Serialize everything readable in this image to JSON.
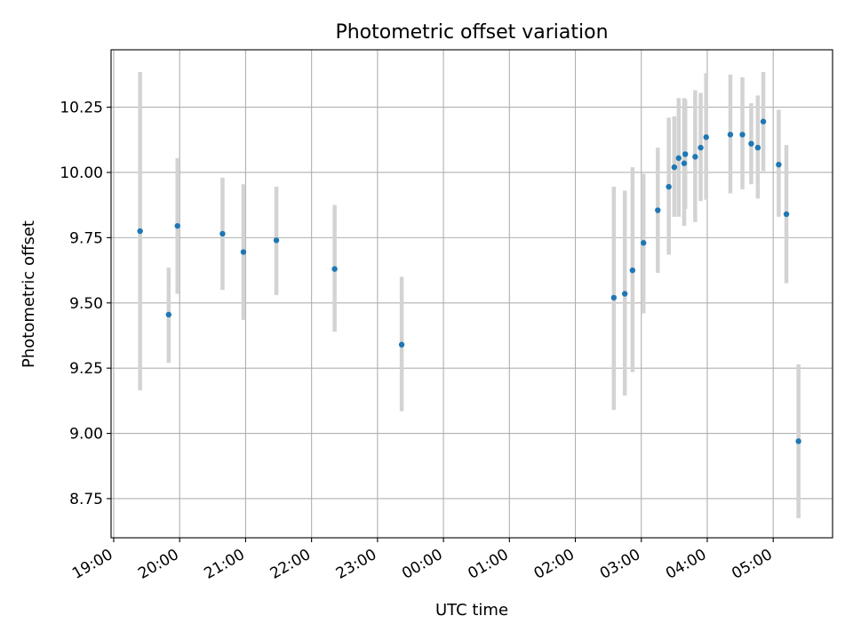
{
  "chart_data": {
    "type": "scatter",
    "title": "Photometric offset variation",
    "xlabel": "UTC time",
    "ylabel": "Photometric offset",
    "grid": true,
    "xlim_hours": [
      18.96,
      29.9
    ],
    "ylim": [
      8.6,
      10.47
    ],
    "x_ticks": [
      {
        "value": 19,
        "label": "19:00"
      },
      {
        "value": 20,
        "label": "20:00"
      },
      {
        "value": 21,
        "label": "21:00"
      },
      {
        "value": 22,
        "label": "22:00"
      },
      {
        "value": 23,
        "label": "23:00"
      },
      {
        "value": 24,
        "label": "00:00"
      },
      {
        "value": 25,
        "label": "01:00"
      },
      {
        "value": 26,
        "label": "02:00"
      },
      {
        "value": 27,
        "label": "03:00"
      },
      {
        "value": 28,
        "label": "04:00"
      },
      {
        "value": 29,
        "label": "05:00"
      }
    ],
    "y_ticks": [
      {
        "value": 8.75,
        "label": "8.75"
      },
      {
        "value": 9.0,
        "label": "9.00"
      },
      {
        "value": 9.25,
        "label": "9.25"
      },
      {
        "value": 9.5,
        "label": "9.50"
      },
      {
        "value": 9.75,
        "label": "9.75"
      },
      {
        "value": 10.0,
        "label": "10.00"
      },
      {
        "value": 10.25,
        "label": "10.25"
      }
    ],
    "colors": {
      "point": "#1f77b4",
      "errorbar": "#d3d3d3",
      "grid": "#b0b0b0"
    },
    "points": [
      {
        "time": "19:24",
        "y": 9.775,
        "ylo": 9.165,
        "yhi": 10.385
      },
      {
        "time": "19:50",
        "y": 9.455,
        "ylo": 9.27,
        "yhi": 9.635
      },
      {
        "time": "19:58",
        "y": 9.795,
        "ylo": 9.535,
        "yhi": 10.055
      },
      {
        "time": "20:39",
        "y": 9.765,
        "ylo": 9.55,
        "yhi": 9.98
      },
      {
        "time": "20:58",
        "y": 9.695,
        "ylo": 9.435,
        "yhi": 9.955
      },
      {
        "time": "21:28",
        "y": 9.74,
        "ylo": 9.53,
        "yhi": 9.945
      },
      {
        "time": "22:21",
        "y": 9.63,
        "ylo": 9.39,
        "yhi": 9.875
      },
      {
        "time": "23:22",
        "y": 9.34,
        "ylo": 9.085,
        "yhi": 9.6
      },
      {
        "time": "02:35",
        "y": 9.52,
        "ylo": 9.09,
        "yhi": 9.945
      },
      {
        "time": "02:45",
        "y": 9.535,
        "ylo": 9.145,
        "yhi": 9.93
      },
      {
        "time": "02:52",
        "y": 9.625,
        "ylo": 9.235,
        "yhi": 10.02
      },
      {
        "time": "03:02",
        "y": 9.73,
        "ylo": 9.46,
        "yhi": 9.995
      },
      {
        "time": "03:15",
        "y": 9.855,
        "ylo": 9.615,
        "yhi": 10.095
      },
      {
        "time": "03:25",
        "y": 9.945,
        "ylo": 9.685,
        "yhi": 10.21
      },
      {
        "time": "03:30",
        "y": 10.02,
        "ylo": 9.83,
        "yhi": 10.215
      },
      {
        "time": "03:34",
        "y": 10.055,
        "ylo": 9.83,
        "yhi": 10.285
      },
      {
        "time": "03:39",
        "y": 10.035,
        "ylo": 9.795,
        "yhi": 10.285
      },
      {
        "time": "03:40",
        "y": 10.07,
        "ylo": 9.86,
        "yhi": 10.28
      },
      {
        "time": "03:49",
        "y": 10.06,
        "ylo": 9.81,
        "yhi": 10.315
      },
      {
        "time": "03:54",
        "y": 10.095,
        "ylo": 9.89,
        "yhi": 10.305
      },
      {
        "time": "03:59",
        "y": 10.135,
        "ylo": 9.895,
        "yhi": 10.38
      },
      {
        "time": "04:21",
        "y": 10.145,
        "ylo": 9.92,
        "yhi": 10.375
      },
      {
        "time": "04:32",
        "y": 10.145,
        "ylo": 9.935,
        "yhi": 10.365
      },
      {
        "time": "04:40",
        "y": 10.11,
        "ylo": 9.955,
        "yhi": 10.265
      },
      {
        "time": "04:46",
        "y": 10.095,
        "ylo": 9.9,
        "yhi": 10.295
      },
      {
        "time": "04:51",
        "y": 10.195,
        "ylo": 10.005,
        "yhi": 10.385
      },
      {
        "time": "05:05",
        "y": 10.03,
        "ylo": 9.83,
        "yhi": 10.24
      },
      {
        "time": "05:12",
        "y": 9.84,
        "ylo": 9.575,
        "yhi": 10.105
      },
      {
        "time": "05:23",
        "y": 8.97,
        "ylo": 8.675,
        "yhi": 9.265
      }
    ]
  }
}
